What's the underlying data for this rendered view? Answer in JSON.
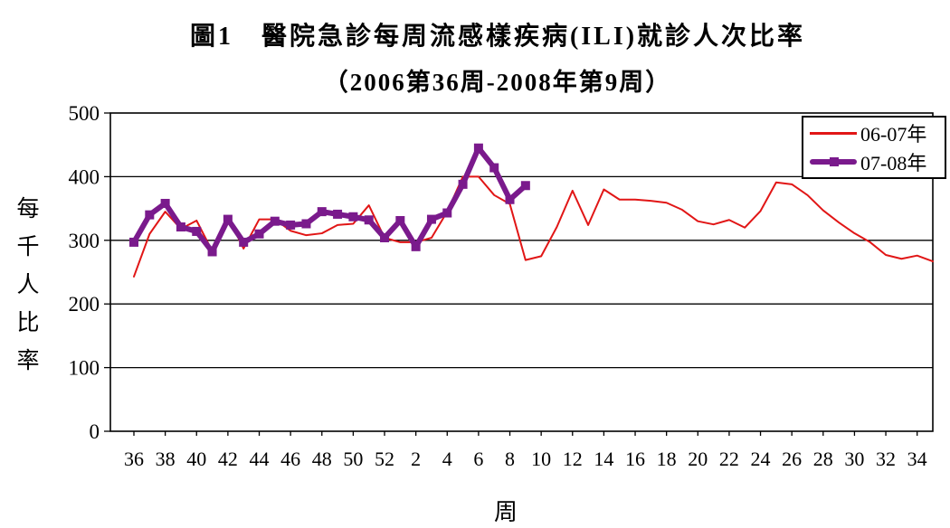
{
  "title": {
    "line1": "圖1　醫院急診每周流感樣疾病(ILI)就診人次比率",
    "line2": "（2006第36周-2008年第9周）"
  },
  "chart_data": {
    "type": "line",
    "title": "圖1 醫院急診每周流感樣疾病(ILI)就診人次比率（2006第36周-2008年第9周）",
    "xlabel": "周",
    "ylabel": "每千人比率",
    "ylim": [
      0,
      500
    ],
    "yticks": [
      0,
      100,
      200,
      300,
      400,
      500
    ],
    "xtick_labels": [
      "36",
      "38",
      "40",
      "42",
      "44",
      "46",
      "48",
      "50",
      "52",
      "2",
      "4",
      "6",
      "8",
      "10",
      "12",
      "14",
      "16",
      "18",
      "20",
      "22",
      "24",
      "26",
      "28",
      "30",
      "32",
      "34"
    ],
    "x_weeks": [
      36,
      37,
      38,
      39,
      40,
      41,
      42,
      43,
      44,
      45,
      46,
      47,
      48,
      49,
      50,
      51,
      52,
      1,
      2,
      3,
      4,
      5,
      6,
      7,
      8,
      9,
      10,
      11,
      12,
      13,
      14,
      15,
      16,
      17,
      18,
      19,
      20,
      21,
      22,
      23,
      24,
      25,
      26,
      27,
      28,
      29,
      30,
      31,
      32,
      33,
      34,
      35
    ],
    "grid": "horizontal",
    "legend_position": "top-right-inside",
    "axis_color": "#000000",
    "series": [
      {
        "name": "06-07年",
        "color": "#e11616",
        "line_width": 2,
        "marker": "none",
        "values": [
          243,
          310,
          345,
          318,
          331,
          283,
          337,
          287,
          333,
          333,
          315,
          308,
          311,
          324,
          326,
          355,
          304,
          297,
          297,
          304,
          345,
          400,
          400,
          371,
          357,
          269,
          275,
          321,
          378,
          324,
          380,
          364,
          364,
          362,
          359,
          348,
          330,
          325,
          332,
          320,
          346,
          391,
          388,
          371,
          347,
          328,
          311,
          297,
          277,
          271,
          276,
          267
        ]
      },
      {
        "name": "07-08年",
        "color": "#7a1a8c",
        "line_width": 6,
        "marker": "square",
        "marker_size": 10,
        "values": [
          297,
          340,
          358,
          321,
          314,
          282,
          333,
          297,
          310,
          330,
          324,
          326,
          345,
          341,
          337,
          332,
          304,
          331,
          290,
          333,
          343,
          388,
          445,
          414,
          364,
          386
        ]
      }
    ]
  }
}
